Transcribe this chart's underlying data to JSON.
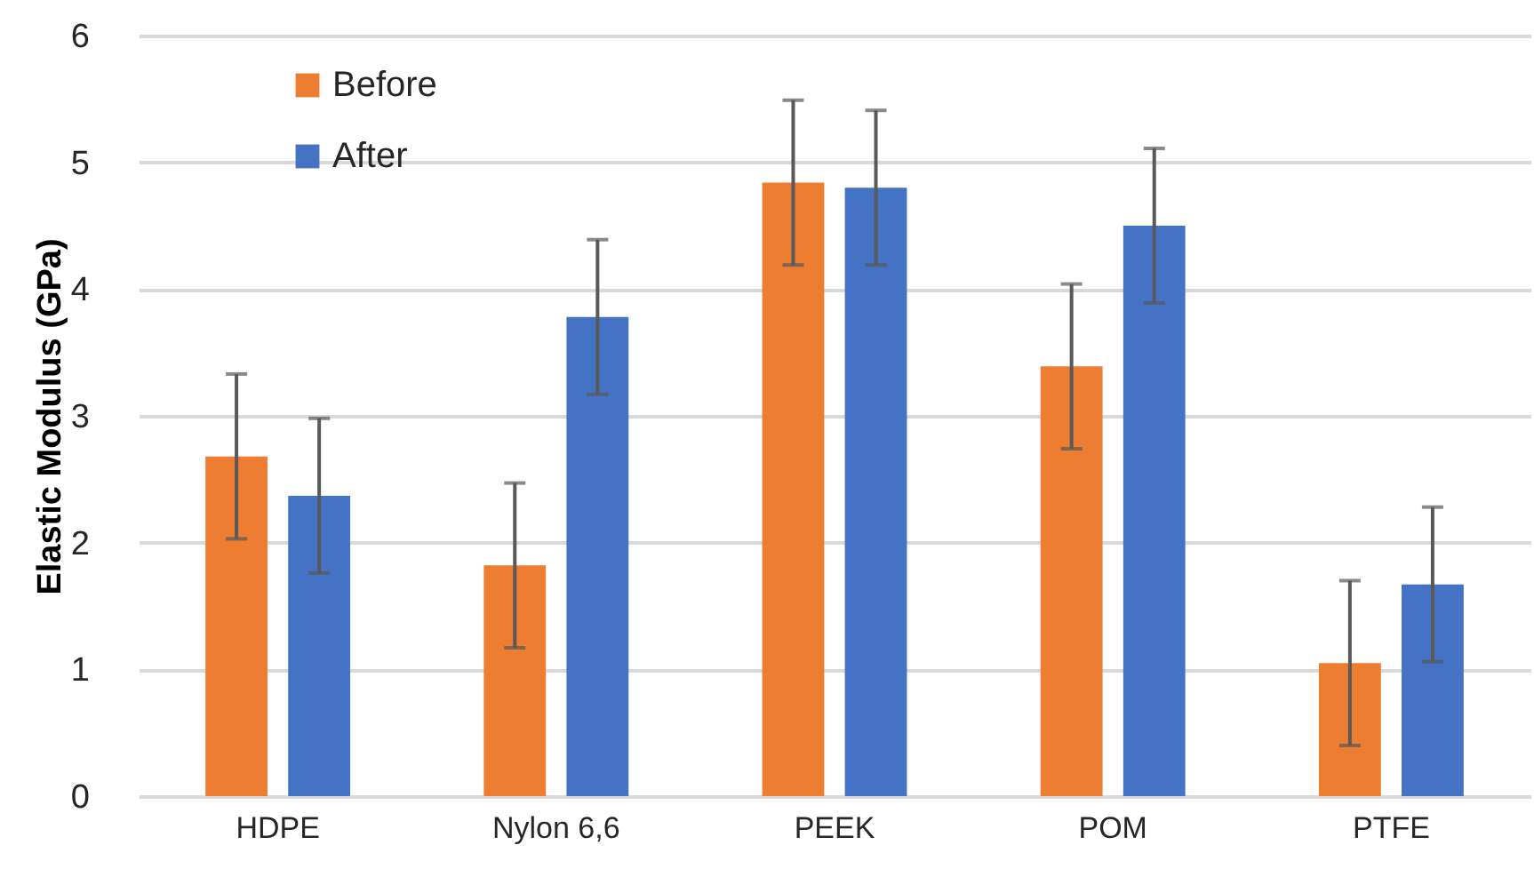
{
  "chart_data": {
    "type": "bar",
    "ylabel": "Elastic Modulus (GPa)",
    "categories": [
      "HDPE",
      "Nylon 6,6",
      "PEEK",
      "POM",
      "PTFE"
    ],
    "series": [
      {
        "name": "Before",
        "color": "#ed7d31",
        "values": [
          2.68,
          1.82,
          4.84,
          3.39,
          1.05
        ],
        "errors": [
          0.65,
          0.65,
          0.65,
          0.65,
          0.65
        ]
      },
      {
        "name": "After",
        "color": "#4472c4",
        "values": [
          2.37,
          3.78,
          4.8,
          4.5,
          1.67
        ],
        "errors": [
          0.61,
          0.61,
          0.61,
          0.61,
          0.61
        ]
      }
    ],
    "ylim": [
      0,
      6
    ],
    "yticks": [
      0,
      1,
      2,
      3,
      4,
      5,
      6
    ],
    "grid": "y",
    "legend": "top left"
  }
}
